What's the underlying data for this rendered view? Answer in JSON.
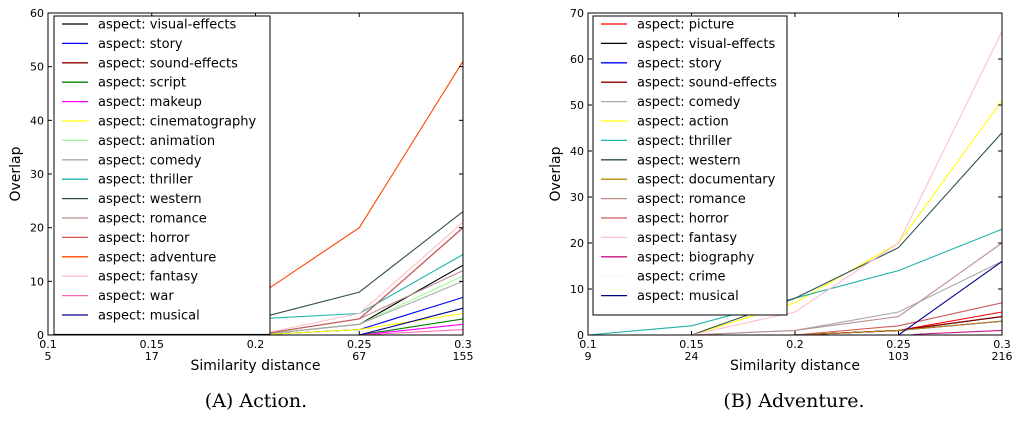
{
  "chart_data": [
    {
      "type": "line",
      "ylabel": "Overlap",
      "xlabel": "Similarity distance",
      "caption": "(A) Action.",
      "x": [
        0.1,
        0.15,
        0.2,
        0.25,
        0.3
      ],
      "x_tick_labels": [
        "0.1",
        "0.15",
        "0.2",
        "0.25",
        "0.3"
      ],
      "x_secondary_labels": [
        "5",
        "17",
        "",
        "67",
        "155"
      ],
      "ylim": [
        0,
        60
      ],
      "y_ticks": [
        0,
        10,
        20,
        30,
        40,
        50,
        60
      ],
      "legend_position": "upper-left",
      "series": [
        {
          "name": "aspect: visual-effects",
          "color": "#000000",
          "values": [
            0,
            0,
            0,
            2,
            13
          ]
        },
        {
          "name": "aspect: story",
          "color": "#0000ff",
          "values": [
            0,
            0,
            0,
            1,
            7
          ]
        },
        {
          "name": "aspect: sound-effects",
          "color": "#8b0000",
          "values": [
            0,
            0,
            0,
            3,
            20
          ]
        },
        {
          "name": "aspect: script",
          "color": "#008000",
          "values": [
            0,
            0,
            0,
            0,
            3
          ]
        },
        {
          "name": "aspect: makeup",
          "color": "#ff00ff",
          "values": [
            0,
            0,
            0,
            0,
            2
          ]
        },
        {
          "name": "aspect: cinematography",
          "color": "#ffff00",
          "values": [
            0,
            0,
            0,
            1,
            4
          ]
        },
        {
          "name": "aspect: animation",
          "color": "#98fb98",
          "values": [
            0,
            0,
            0,
            2,
            11
          ]
        },
        {
          "name": "aspect: comedy",
          "color": "#a9a9a9",
          "values": [
            0,
            0,
            0,
            2,
            10
          ]
        },
        {
          "name": "aspect: thriller",
          "color": "#20b2aa",
          "values": [
            0,
            0,
            3,
            4,
            15
          ]
        },
        {
          "name": "aspect: western",
          "color": "#2f4f4f",
          "values": [
            0,
            0,
            3,
            8,
            23
          ]
        },
        {
          "name": "aspect: romance",
          "color": "#bc8f8f",
          "values": [
            0,
            0,
            0,
            3,
            12
          ]
        },
        {
          "name": "aspect: horror",
          "color": "#cd5c5c",
          "values": [
            0,
            0,
            0,
            3,
            20
          ]
        },
        {
          "name": "aspect: adventure",
          "color": "#ff4500",
          "values": [
            0,
            1,
            7,
            20,
            51
          ]
        },
        {
          "name": "aspect: fantasy",
          "color": "#ffc0cb",
          "values": [
            0,
            0,
            0,
            4,
            21
          ]
        },
        {
          "name": "aspect: war",
          "color": "#ff69b4",
          "values": [
            0,
            0,
            0,
            0,
            1
          ]
        },
        {
          "name": "aspect: musical",
          "color": "#00008b",
          "values": [
            0,
            0,
            0,
            0,
            5
          ]
        }
      ]
    },
    {
      "type": "line",
      "ylabel": "Overlap",
      "xlabel": "Similarity distance",
      "caption": "(B) Adventure.",
      "x": [
        0.1,
        0.15,
        0.2,
        0.25,
        0.3
      ],
      "x_tick_labels": [
        "0.1",
        "0.15",
        "0.2",
        "0.25",
        "0.3"
      ],
      "x_secondary_labels": [
        "9",
        "24",
        "",
        "103",
        "216"
      ],
      "ylim": [
        0,
        70
      ],
      "y_ticks": [
        0,
        10,
        20,
        30,
        40,
        50,
        60,
        70
      ],
      "legend_position": "upper-left",
      "series": [
        {
          "name": "aspect: picture",
          "color": "#ff0000",
          "values": [
            0,
            0,
            0,
            1,
            5
          ]
        },
        {
          "name": "aspect: visual-effects",
          "color": "#000000",
          "values": [
            0,
            0,
            0,
            1,
            4
          ]
        },
        {
          "name": "aspect: story",
          "color": "#0000ff",
          "values": [
            0,
            0,
            0,
            1,
            3
          ]
        },
        {
          "name": "aspect: sound-effects",
          "color": "#8b0000",
          "values": [
            0,
            0,
            0,
            1,
            4
          ]
        },
        {
          "name": "aspect: comedy",
          "color": "#a9a9a9",
          "values": [
            0,
            0,
            1,
            5,
            16
          ]
        },
        {
          "name": "aspect: action",
          "color": "#ffff00",
          "values": [
            0,
            0,
            7,
            20,
            51
          ]
        },
        {
          "name": "aspect: thriller",
          "color": "#20b2aa",
          "values": [
            0,
            2,
            8,
            14,
            23
          ]
        },
        {
          "name": "aspect: western",
          "color": "#2f4f4f",
          "values": [
            0,
            0,
            8,
            19,
            44
          ]
        },
        {
          "name": "aspect: documentary",
          "color": "#b8860b",
          "values": [
            0,
            0,
            0,
            1,
            3
          ]
        },
        {
          "name": "aspect: romance",
          "color": "#bc8f8f",
          "values": [
            0,
            0,
            1,
            4,
            20
          ]
        },
        {
          "name": "aspect: horror",
          "color": "#cd5c5c",
          "values": [
            0,
            0,
            0,
            2,
            7
          ]
        },
        {
          "name": "aspect: fantasy",
          "color": "#ffc0cb",
          "values": [
            0,
            0,
            5,
            20,
            66
          ]
        },
        {
          "name": "aspect: biography",
          "color": "#c71585",
          "values": [
            0,
            0,
            0,
            0,
            1
          ]
        },
        {
          "name": "aspect: crime",
          "color": "#f0fff0",
          "values": [
            0,
            0,
            0,
            0,
            2
          ]
        },
        {
          "name": "aspect: musical",
          "color": "#00008b",
          "values": [
            0,
            0,
            0,
            0,
            16
          ]
        }
      ]
    }
  ]
}
